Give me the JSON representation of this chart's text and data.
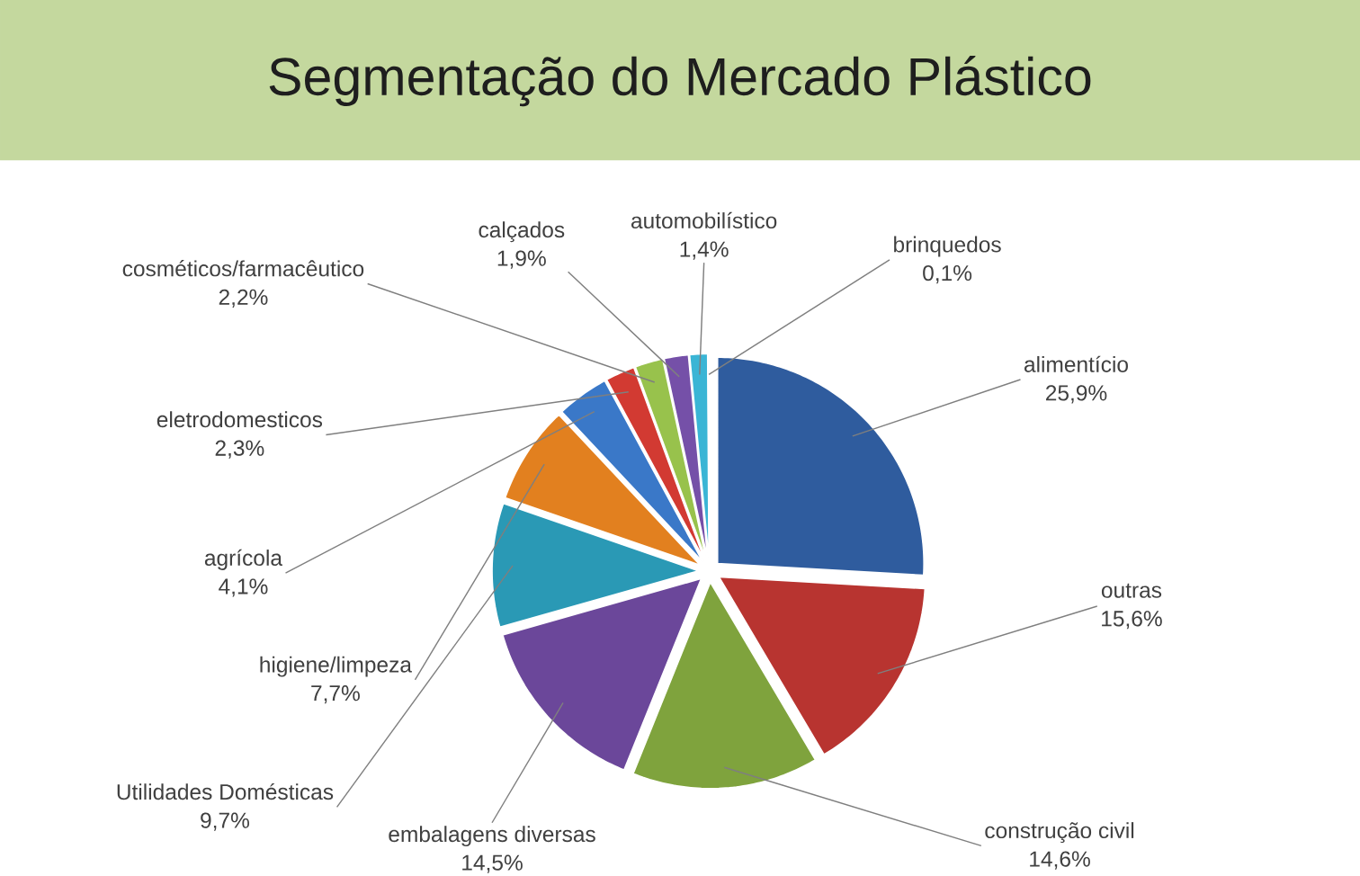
{
  "chart_data": {
    "type": "pie",
    "title": "Segmentação do Mercado Plástico",
    "categories": [
      "alimentício",
      "outras",
      "construção civil",
      "embalagens diversas",
      "Utilidades Domésticas",
      "higiene/limpeza",
      "agrícola",
      "eletrodomesticos",
      "cosméticos/farmacêutico",
      "calçados",
      "automobilístico",
      "brinquedos"
    ],
    "values": [
      25.9,
      15.6,
      14.6,
      14.5,
      9.7,
      7.7,
      4.1,
      2.3,
      2.2,
      1.9,
      1.4,
      0.1
    ],
    "value_labels": [
      "25,9%",
      "15,6%",
      "14,6%",
      "14,5%",
      "9,7%",
      "7,7%",
      "4,1%",
      "2,3%",
      "2,2%",
      "1,9%",
      "1,4%",
      "0,1%"
    ],
    "colors": [
      "#2f5c9e",
      "#b83430",
      "#7fa33d",
      "#6b479a",
      "#2a99b5",
      "#e2801f",
      "#3a78c8",
      "#d23a32",
      "#98c24c",
      "#7550a8",
      "#3ab5d5",
      "#e88a2e"
    ]
  }
}
